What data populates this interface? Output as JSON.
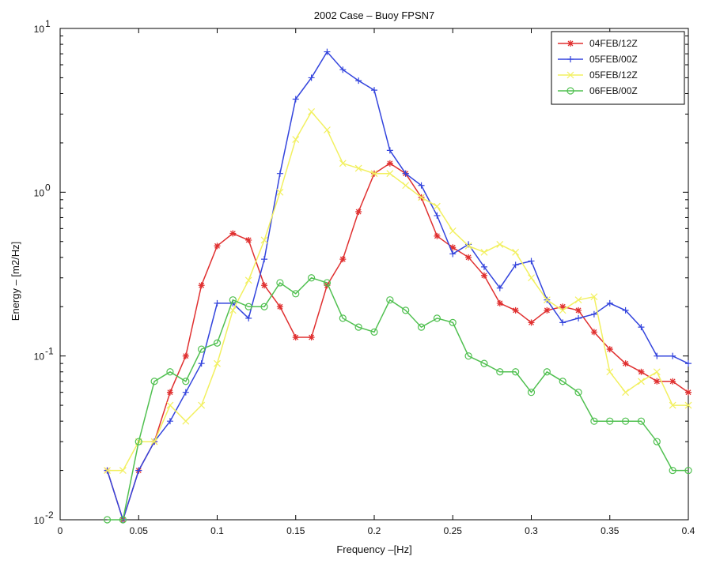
{
  "chart_data": {
    "type": "line",
    "title": "2002 Case – Buoy FPSN7",
    "xlabel": "Frequency –[Hz]",
    "ylabel": "Energy – [m2/Hz]",
    "xlim": [
      0,
      0.4
    ],
    "ylim": [
      0.01,
      10
    ],
    "y_scale": "log",
    "x_ticks": [
      0,
      0.05,
      0.1,
      0.15,
      0.2,
      0.25,
      0.3,
      0.35,
      0.4
    ],
    "x_tick_labels": [
      "0",
      "0.05",
      "0.1",
      "0.15",
      "0.2",
      "0.25",
      "0.3",
      "0.35",
      "0.4"
    ],
    "y_ticks": [
      0.01,
      0.1,
      1,
      10
    ],
    "y_tick_labels": [
      {
        "base": "10",
        "exp": "-2"
      },
      {
        "base": "10",
        "exp": "-1"
      },
      {
        "base": "10",
        "exp": "0"
      },
      {
        "base": "10",
        "exp": "1"
      }
    ],
    "grid": false,
    "legend_position": "top-right",
    "x": [
      0.03,
      0.04,
      0.05,
      0.06,
      0.07,
      0.08,
      0.09,
      0.1,
      0.11,
      0.12,
      0.13,
      0.14,
      0.15,
      0.16,
      0.17,
      0.18,
      0.19,
      0.2,
      0.21,
      0.22,
      0.23,
      0.24,
      0.25,
      0.26,
      0.27,
      0.28,
      0.29,
      0.3,
      0.31,
      0.32,
      0.33,
      0.34,
      0.35,
      0.36,
      0.37,
      0.38,
      0.39,
      0.4
    ],
    "series": [
      {
        "name": "04FEB/12Z",
        "color": "#e03030",
        "marker": "star",
        "values": [
          0.02,
          0.01,
          0.02,
          0.03,
          0.06,
          0.1,
          0.27,
          0.47,
          0.56,
          0.51,
          0.27,
          0.2,
          0.13,
          0.13,
          0.27,
          0.39,
          0.76,
          1.3,
          1.5,
          1.3,
          0.93,
          0.54,
          0.46,
          0.4,
          0.31,
          0.21,
          0.19,
          0.16,
          0.19,
          0.2,
          0.19,
          0.14,
          0.11,
          0.09,
          0.08,
          0.07,
          0.07,
          0.06
        ]
      },
      {
        "name": "05FEB/00Z",
        "color": "#3344dd",
        "marker": "plus",
        "values": [
          0.02,
          0.01,
          0.02,
          0.03,
          0.04,
          0.06,
          0.09,
          0.21,
          0.21,
          0.17,
          0.39,
          1.3,
          3.7,
          5.0,
          7.2,
          5.6,
          4.8,
          4.2,
          1.8,
          1.3,
          1.1,
          0.72,
          0.42,
          0.48,
          0.35,
          0.26,
          0.36,
          0.38,
          0.22,
          0.16,
          0.17,
          0.18,
          0.21,
          0.19,
          0.15,
          0.1,
          0.1,
          0.09
        ]
      },
      {
        "name": "05FEB/12Z",
        "color": "#f2f060",
        "marker": "x",
        "values": [
          0.02,
          0.02,
          0.03,
          0.03,
          0.05,
          0.04,
          0.05,
          0.09,
          0.19,
          0.29,
          0.51,
          1.0,
          2.1,
          3.1,
          2.4,
          1.5,
          1.4,
          1.3,
          1.3,
          1.1,
          0.93,
          0.82,
          0.58,
          0.47,
          0.43,
          0.48,
          0.43,
          0.3,
          0.22,
          0.19,
          0.22,
          0.23,
          0.08,
          0.06,
          0.07,
          0.08,
          0.05,
          0.05
        ]
      },
      {
        "name": "06FEB/00Z",
        "color": "#50c050",
        "marker": "circle",
        "values": [
          0.01,
          0.01,
          0.03,
          0.07,
          0.08,
          0.07,
          0.11,
          0.12,
          0.22,
          0.2,
          0.2,
          0.28,
          0.24,
          0.3,
          0.28,
          0.17,
          0.15,
          0.14,
          0.22,
          0.19,
          0.15,
          0.17,
          0.16,
          0.1,
          0.09,
          0.08,
          0.08,
          0.06,
          0.08,
          0.07,
          0.06,
          0.04,
          0.04,
          0.04,
          0.04,
          0.03,
          0.02,
          0.02
        ]
      }
    ]
  }
}
